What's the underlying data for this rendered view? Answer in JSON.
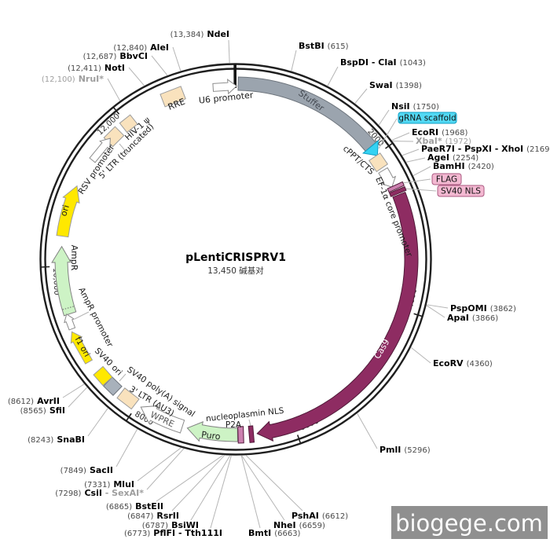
{
  "app": {
    "title": "pLentiCRISPRV1",
    "subtitle": "13,450 碱基对"
  },
  "watermark": "biogege.com",
  "ticks": [
    "2000",
    "4000",
    "6000",
    "8000",
    "10,000",
    "12,000"
  ],
  "features": {
    "u6_promoter": "U6 promoter",
    "stuffer": "Stuffer",
    "grna_scaffold": "gRNA scaffold",
    "cppt_cts": "cPPT/CTS",
    "ef1a_core_promoter": "EF-1α core promoter",
    "flag": "FLAG",
    "sv40_nls": "SV40 NLS",
    "cas9": "Cas9",
    "nucleoplasmin_nls": "nucleoplasmin NLS",
    "p2a": "P2A",
    "puro": "Puro",
    "wpre": "WPRE",
    "ltr3": "3' LTR (ΔU3)",
    "sv40_polya": "SV40 poly(A) signal",
    "sv40_ori": "SV40 ori",
    "f1_ori": "f1 ori",
    "ampr_promoter": "AmpR promoter",
    "ampr": "AmpR",
    "ori": "ori",
    "rsv_promoter": "RSV promoter",
    "ltr5": "5' LTR (truncated)",
    "hiv1_psi": "HIV-1 ψ",
    "rre": "RRE"
  },
  "enzymes": [
    {
      "name": "NruI*",
      "pos": "(12,100)",
      "muted": true
    },
    {
      "name": "NotI",
      "pos": "(12,411)"
    },
    {
      "name": "BbvCI",
      "pos": "(12,687)"
    },
    {
      "name": "AleI",
      "pos": "(12,840)"
    },
    {
      "name": "NdeI",
      "pos": "(13,384)"
    },
    {
      "name": "BstBI",
      "pos": "(615)"
    },
    {
      "name": "BspDI - ClaI",
      "pos": "(1043)"
    },
    {
      "name": "SwaI",
      "pos": "(1398)"
    },
    {
      "name": "NsiI",
      "pos": "(1750)"
    },
    {
      "name": "EcoRI",
      "pos": "(1968)"
    },
    {
      "name": "XbaI*",
      "pos": "(1972)",
      "muted": true
    },
    {
      "name": "PaeR7I - PspXI - XhoI",
      "pos": "(2169)"
    },
    {
      "name": "AgeI",
      "pos": "(2254)"
    },
    {
      "name": "BamHI",
      "pos": "(2420)"
    },
    {
      "name": "PspOMI",
      "pos": "(3862)"
    },
    {
      "name": "ApaI",
      "pos": "(3866)"
    },
    {
      "name": "EcoRV",
      "pos": "(4360)"
    },
    {
      "name": "PmlI",
      "pos": "(5296)"
    },
    {
      "name": "PshAI",
      "pos": "(6612)"
    },
    {
      "name": "NheI",
      "pos": "(6659)"
    },
    {
      "name": "BmtI",
      "pos": "(6663)"
    },
    {
      "name": "PflFI - Tth111I",
      "pos": "(6773)"
    },
    {
      "name": "BsiWI",
      "pos": "(6787)"
    },
    {
      "name": "RsrII",
      "pos": "(6847)"
    },
    {
      "name": "BstEII",
      "pos": "(6865)"
    },
    {
      "name": "CsiI",
      "pos": "(7298)",
      "suffix": " - SexAI*"
    },
    {
      "name": "MluI",
      "pos": "(7331)"
    },
    {
      "name": "SacII",
      "pos": "(7849)"
    },
    {
      "name": "SnaBI",
      "pos": "(8243)"
    },
    {
      "name": "SfiI",
      "pos": "(8565)"
    },
    {
      "name": "AvrII",
      "pos": "(8612)"
    }
  ],
  "colors": {
    "backbone": "#1f1f1f",
    "callout": "#b5b5b5",
    "enzyme_name": "#000000",
    "enzyme_pos": "#4a4a4a",
    "enzyme_muted": "#9e9e9e",
    "tick_text": "#2b2b2b",
    "stuffer_fill": "#9ba4ae",
    "stuffer_stroke": "#6e757d",
    "stuffer_text": "#454a52",
    "scaffold_fill": "#35d2f2",
    "scaffold_stroke": "#0f9ec4",
    "scaffold_label_bg": "#52d9f4",
    "tan_fill": "#f9e2bd",
    "tan_stroke": "#9c9c9c",
    "white_fill": "#ffffff",
    "white_stroke": "#8b8b8b",
    "cas9_fill": "#8e2c62",
    "cas9_stroke": "#511a39",
    "cas9_text": "#ffffff",
    "plum_fill": "#cb80af",
    "plum_stroke": "#8e4a6e",
    "pink_label_bg": "#f3b8d1",
    "pink_label_stroke": "#aa5880",
    "green_fill": "#cdf3c5",
    "green_stroke": "#828282",
    "yellow_fill": "#ffe800",
    "yellow_stroke": "#9c9c9c",
    "gray_fill": "#a8b1bb",
    "gray_stroke": "#6e757d",
    "label_text": "#1a1a1a",
    "wpre_text": "#575757",
    "watermark_bg": "#8f8f8f",
    "watermark_text": "#fdfdfd",
    "title_text": "#000000",
    "subtitle_text": "#333333"
  }
}
